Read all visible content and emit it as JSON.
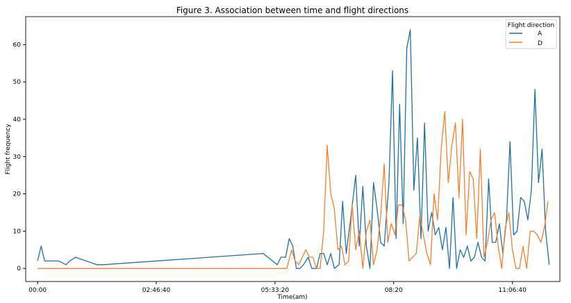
{
  "chart_data": {
    "type": "line",
    "title": "Figure 3. Association between time and flight directions",
    "xlabel": "Time(am)",
    "ylabel": "Flight frequency",
    "x_unit": "seconds since 00:00",
    "xlim": [
      -1000,
      44000
    ],
    "ylim": [
      -3.5,
      67.5
    ],
    "xticks": [
      {
        "value": 0,
        "label": "00:00"
      },
      {
        "value": 10000,
        "label": "02:46:40"
      },
      {
        "value": 20000,
        "label": "05:33:20"
      },
      {
        "value": 30000,
        "label": "08:20"
      },
      {
        "value": 40000,
        "label": "11:06:40"
      }
    ],
    "yticks": [
      0,
      10,
      20,
      30,
      40,
      50,
      60
    ],
    "grid": false,
    "legend": {
      "title": "Flight direction",
      "placement": "top-right"
    },
    "series": [
      {
        "name": "A",
        "color": "#1f6fa3",
        "points": [
          [
            0,
            2
          ],
          [
            300,
            6
          ],
          [
            600,
            2
          ],
          [
            1200,
            2
          ],
          [
            1800,
            2
          ],
          [
            2400,
            1
          ],
          [
            2700,
            2
          ],
          [
            3200,
            3
          ],
          [
            5000,
            1
          ],
          [
            5500,
            1
          ],
          [
            19000,
            4
          ],
          [
            20200,
            1
          ],
          [
            20500,
            3
          ],
          [
            20900,
            3
          ],
          [
            21200,
            8
          ],
          [
            21500,
            6
          ],
          [
            21800,
            0
          ],
          [
            22100,
            0
          ],
          [
            22400,
            1
          ],
          [
            22800,
            3
          ],
          [
            23100,
            0
          ],
          [
            23500,
            0
          ],
          [
            23800,
            4
          ],
          [
            24100,
            4
          ],
          [
            24400,
            1
          ],
          [
            24700,
            4
          ],
          [
            25000,
            0
          ],
          [
            25400,
            1
          ],
          [
            25700,
            18
          ],
          [
            26000,
            4
          ],
          [
            26400,
            14
          ],
          [
            26800,
            25
          ],
          [
            27100,
            6
          ],
          [
            27400,
            22
          ],
          [
            27700,
            6
          ],
          [
            28000,
            0
          ],
          [
            28300,
            23
          ],
          [
            28600,
            16
          ],
          [
            28900,
            7
          ],
          [
            29200,
            6
          ],
          [
            29600,
            23
          ],
          [
            29900,
            53
          ],
          [
            30200,
            8
          ],
          [
            30500,
            44
          ],
          [
            30800,
            12
          ],
          [
            31100,
            59
          ],
          [
            31400,
            64
          ],
          [
            31700,
            21
          ],
          [
            32000,
            35
          ],
          [
            32300,
            8
          ],
          [
            32600,
            39
          ],
          [
            32900,
            10
          ],
          [
            33200,
            15
          ],
          [
            33500,
            9
          ],
          [
            33800,
            11
          ],
          [
            34100,
            5
          ],
          [
            34400,
            11
          ],
          [
            34700,
            0
          ],
          [
            35000,
            19
          ],
          [
            35300,
            0
          ],
          [
            35600,
            5
          ],
          [
            35900,
            3
          ],
          [
            36200,
            6
          ],
          [
            36500,
            2
          ],
          [
            36800,
            3
          ],
          [
            37100,
            7
          ],
          [
            37400,
            3
          ],
          [
            37700,
            2
          ],
          [
            38000,
            24
          ],
          [
            38300,
            7
          ],
          [
            38600,
            7
          ],
          [
            38900,
            12
          ],
          [
            39200,
            4
          ],
          [
            39500,
            13
          ],
          [
            39800,
            34
          ],
          [
            40100,
            9
          ],
          [
            40400,
            10
          ],
          [
            40700,
            19
          ],
          [
            41000,
            18
          ],
          [
            41300,
            13
          ],
          [
            41600,
            21
          ],
          [
            41900,
            48
          ],
          [
            42200,
            23
          ],
          [
            42500,
            32
          ],
          [
            42800,
            10
          ],
          [
            43100,
            1
          ]
        ]
      },
      {
        "name": "D",
        "color": "#f47f2b",
        "points": [
          [
            0,
            0
          ],
          [
            21000,
            0
          ],
          [
            21400,
            5
          ],
          [
            21700,
            2
          ],
          [
            22000,
            1
          ],
          [
            22300,
            3
          ],
          [
            22600,
            5
          ],
          [
            22900,
            3
          ],
          [
            23200,
            3
          ],
          [
            23500,
            0
          ],
          [
            23800,
            0
          ],
          [
            24100,
            10
          ],
          [
            24400,
            33
          ],
          [
            24700,
            20
          ],
          [
            25000,
            16
          ],
          [
            25300,
            5
          ],
          [
            25600,
            6
          ],
          [
            25900,
            1
          ],
          [
            26200,
            2
          ],
          [
            26500,
            17
          ],
          [
            26800,
            5
          ],
          [
            27100,
            10
          ],
          [
            27400,
            0
          ],
          [
            27700,
            10
          ],
          [
            28000,
            13
          ],
          [
            28300,
            1
          ],
          [
            28600,
            5
          ],
          [
            28900,
            14
          ],
          [
            29200,
            28
          ],
          [
            29500,
            7
          ],
          [
            29800,
            12
          ],
          [
            30100,
            9
          ],
          [
            30400,
            17
          ],
          [
            30700,
            17
          ],
          [
            31000,
            13
          ],
          [
            31300,
            2
          ],
          [
            31600,
            3
          ],
          [
            31900,
            4
          ],
          [
            32200,
            14
          ],
          [
            32500,
            9
          ],
          [
            32800,
            4
          ],
          [
            33100,
            1
          ],
          [
            33400,
            20
          ],
          [
            33700,
            13
          ],
          [
            34000,
            32
          ],
          [
            34300,
            42
          ],
          [
            34600,
            23
          ],
          [
            34900,
            33
          ],
          [
            35200,
            39
          ],
          [
            35500,
            19
          ],
          [
            35800,
            40
          ],
          [
            36100,
            9
          ],
          [
            36400,
            26
          ],
          [
            36700,
            24
          ],
          [
            37000,
            8
          ],
          [
            37300,
            32
          ],
          [
            37600,
            3
          ],
          [
            37900,
            7
          ],
          [
            38200,
            13
          ],
          [
            38500,
            15
          ],
          [
            38800,
            6
          ],
          [
            39100,
            0
          ],
          [
            39400,
            11
          ],
          [
            39700,
            15
          ],
          [
            40000,
            5
          ],
          [
            40300,
            0
          ],
          [
            40600,
            0
          ],
          [
            40900,
            6
          ],
          [
            41200,
            0
          ],
          [
            41500,
            10
          ],
          [
            41800,
            10
          ],
          [
            42100,
            9
          ],
          [
            42400,
            7
          ],
          [
            42700,
            11
          ],
          [
            43000,
            18
          ]
        ]
      }
    ]
  }
}
